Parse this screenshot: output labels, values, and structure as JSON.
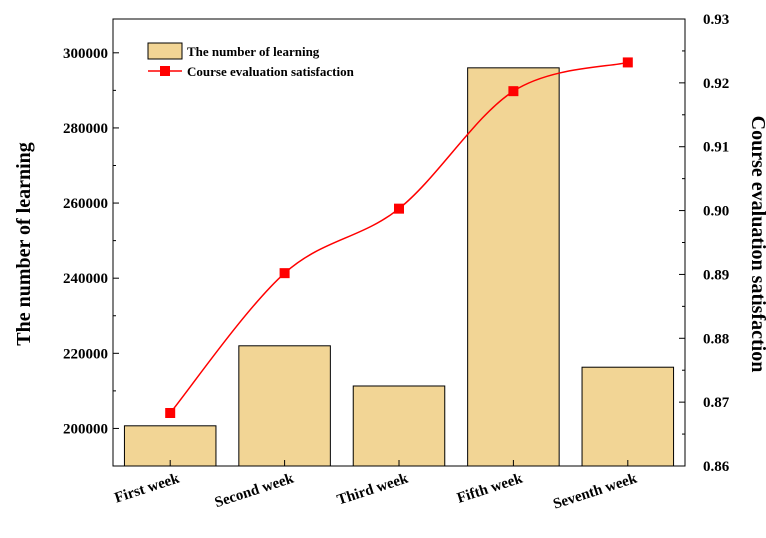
{
  "chart_data": {
    "type": "bar+line",
    "categories": [
      "First week",
      "Second week",
      "Third week",
      "Fifth week",
      "Seventh week"
    ],
    "series": [
      {
        "name": "The number of learning",
        "type": "bar",
        "axis": "left",
        "values": [
          200700,
          222000,
          211300,
          296000,
          216300
        ],
        "color": "#f2d595"
      },
      {
        "name": "Course evaluation satisfaction",
        "type": "line",
        "axis": "right",
        "values": [
          0.8683,
          0.8902,
          0.9003,
          0.9187,
          0.9232
        ],
        "color": "#ff0000"
      }
    ],
    "y_left": {
      "label": "The number of learning",
      "ylim": [
        190000,
        309000
      ],
      "ticks": [
        200000,
        220000,
        240000,
        260000,
        280000,
        300000
      ],
      "tick_labels": [
        "200000",
        "220000",
        "240000",
        "260000",
        "280000",
        "300000"
      ]
    },
    "y_right": {
      "label": "Course evaluation satisfaction",
      "ylim": [
        0.86,
        0.93
      ],
      "ticks": [
        0.86,
        0.87,
        0.88,
        0.89,
        0.9,
        0.91,
        0.92,
        0.93
      ],
      "tick_labels": [
        "0.86",
        "0.87",
        "0.88",
        "0.89",
        "0.90",
        "0.91",
        "0.92",
        "0.93"
      ]
    },
    "xlabel": "",
    "grid": false,
    "legend": {
      "position": "top-left",
      "entries": [
        "The number of learning",
        "Course evaluation satisfaction"
      ]
    }
  }
}
